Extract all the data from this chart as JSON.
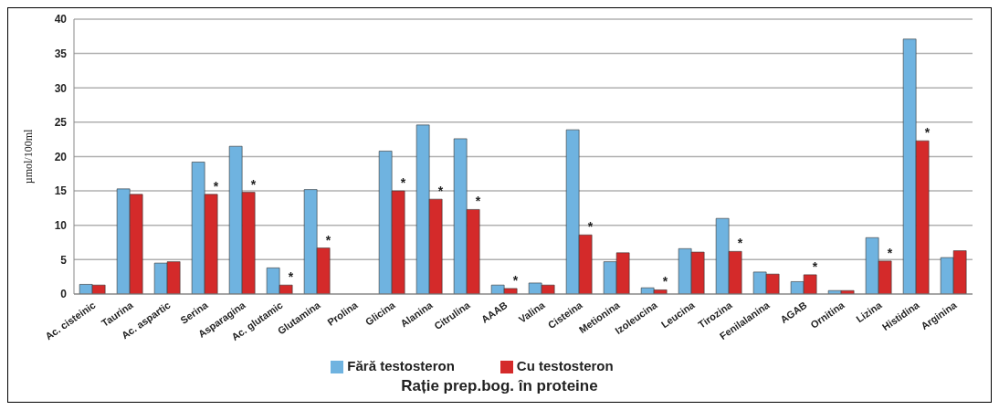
{
  "chart_data": {
    "type": "bar",
    "xlabel": "Rație prep.bog. în proteine",
    "ylabel": "µmol/100ml",
    "categories": [
      "Ac. cisteinic",
      "Taurina",
      "Ac. aspartic",
      "Serina",
      "Asparagina",
      "Ac. glutamic",
      "Glutamina",
      "Prolina",
      "Glicina",
      "Alanina",
      "Citrulina",
      "AAAB",
      "Valina",
      "Cisteina",
      "Metionina",
      "Izoleucina",
      "Leucina",
      "Tirozina",
      "Fenilalanina",
      "AGAB",
      "Ornitina",
      "Lizina",
      "Histidina",
      "Arginina"
    ],
    "series": [
      {
        "name": "Fără testosteron",
        "color": "#6fb3e0",
        "values": [
          1.4,
          15.3,
          4.5,
          19.2,
          21.5,
          3.8,
          15.2,
          null,
          20.8,
          24.6,
          22.6,
          1.3,
          1.6,
          23.9,
          4.7,
          0.9,
          6.6,
          11.0,
          3.2,
          1.8,
          0.5,
          8.2,
          37.1,
          5.3
        ]
      },
      {
        "name": "Cu testosteron",
        "color": "#d42a2a",
        "values": [
          1.3,
          14.5,
          4.7,
          14.5,
          14.8,
          1.3,
          6.7,
          null,
          15.0,
          13.8,
          12.3,
          0.8,
          1.3,
          8.6,
          6.0,
          0.6,
          6.1,
          6.2,
          2.9,
          2.8,
          0.5,
          4.8,
          22.3,
          6.3
        ]
      }
    ],
    "ylim": [
      0,
      40
    ],
    "yticks": [
      0,
      5,
      10,
      15,
      20,
      25,
      30,
      35,
      40
    ],
    "grid": "y",
    "legend": "bottom",
    "annotations": [
      {
        "text": "*",
        "x": "Serina",
        "y": 14.5
      },
      {
        "text": "*",
        "x": "Asparagina",
        "y": 14.8
      },
      {
        "text": "*",
        "x": "Ac. glutamic",
        "y": 1.3
      },
      {
        "text": "*",
        "x": "Glutamina",
        "y": 6.7
      },
      {
        "text": "*",
        "x": "Glicina",
        "y": 15.0
      },
      {
        "text": "*",
        "x": "Alanina",
        "y": 13.8
      },
      {
        "text": "*",
        "x": "Citrulina",
        "y": 12.3
      },
      {
        "text": "*",
        "x": "AAAB",
        "y": 0.8
      },
      {
        "text": "*",
        "x": "Cisteina",
        "y": 8.6
      },
      {
        "text": "*",
        "x": "Izoleucina",
        "y": 0.6
      },
      {
        "text": "*",
        "x": "Tirozina",
        "y": 6.2
      },
      {
        "text": "*",
        "x": "AGAB",
        "y": 2.8
      },
      {
        "text": "*",
        "x": "Lizina",
        "y": 4.8
      },
      {
        "text": "*",
        "x": "Histidina",
        "y": 22.3
      }
    ]
  }
}
